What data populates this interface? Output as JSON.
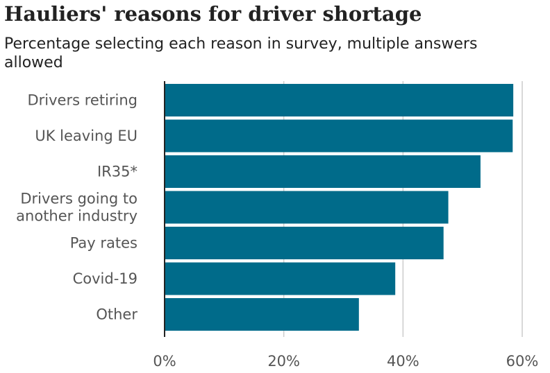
{
  "chart_data": {
    "type": "bar",
    "orientation": "horizontal",
    "title": "Hauliers' reasons for driver shortage",
    "subtitle": "Percentage selecting each reason in survey, multiple answers allowed",
    "categories": [
      "Drivers retiring",
      "UK leaving EU",
      "IR35*",
      "Drivers going to another industry",
      "Pay rates",
      "Covid-19",
      "Other"
    ],
    "category_lines": [
      [
        "Drivers retiring"
      ],
      [
        "UK leaving EU"
      ],
      [
        "IR35*"
      ],
      [
        "Drivers going to",
        "another industry"
      ],
      [
        "Pay rates"
      ],
      [
        "Covid-19"
      ],
      [
        "Other"
      ]
    ],
    "values": [
      58.5,
      58.4,
      53,
      47.6,
      46.8,
      38.7,
      32.6
    ],
    "xlim": [
      0,
      60
    ],
    "ticks": [
      0,
      20,
      40,
      60
    ],
    "tick_labels": [
      "0%",
      "20%",
      "40%",
      "60%"
    ],
    "xlabel": "",
    "ylabel": "",
    "grid": true,
    "legend": "none",
    "colors": {
      "bar": "#006b8a",
      "grid": "#cccccc",
      "axis": "#222222"
    }
  }
}
